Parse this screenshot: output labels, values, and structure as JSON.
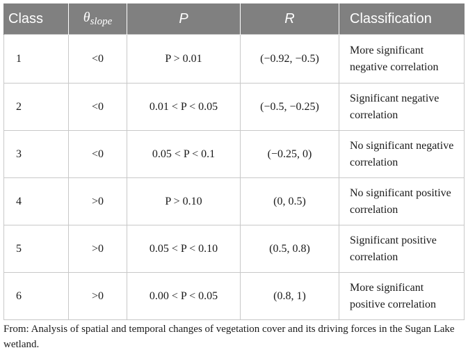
{
  "table": {
    "headers": {
      "class": "Class",
      "theta_symbol": "θ",
      "theta_subscript": "slope",
      "p": "P",
      "r": "R",
      "classification": "Classification"
    },
    "rows": [
      {
        "class": "1",
        "theta": "<0",
        "p": "P > 0.01",
        "r": "(−0.92, −0.5)",
        "classification": "More significant negative correlation"
      },
      {
        "class": "2",
        "theta": "<0",
        "p": "0.01 < P < 0.05",
        "r": "(−0.5, −0.25)",
        "classification": "Significant negative correlation"
      },
      {
        "class": "3",
        "theta": "<0",
        "p": "0.05 < P < 0.1",
        "r": "(−0.25, 0)",
        "classification": "No significant negative correlation"
      },
      {
        "class": "4",
        "theta": ">0",
        "p": "P > 0.10",
        "r": "(0, 0.5)",
        "classification": "No significant positive correlation"
      },
      {
        "class": "5",
        "theta": ">0",
        "p": "0.05 < P < 0.10",
        "r": "(0.5, 0.8)",
        "classification": "Significant positive correlation"
      },
      {
        "class": "6",
        "theta": ">0",
        "p": "0.00 < P < 0.05",
        "r": "(0.8, 1)",
        "classification": "More significant positive correlation"
      }
    ]
  },
  "caption": "From: Analysis of spatial and temporal changes of vegetation cover and its driving forces in the Sugan Lake wetland.",
  "colors": {
    "header_background": "#808080",
    "header_text": "#ffffff",
    "grid_lines": "#c8c8c8"
  }
}
